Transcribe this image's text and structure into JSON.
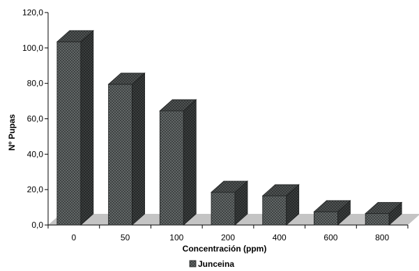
{
  "chart_data": {
    "type": "bar",
    "style": "3d-column",
    "categories": [
      "0",
      "50",
      "100",
      "200",
      "400",
      "600",
      "800"
    ],
    "series": [
      {
        "name": "Junceina",
        "values": [
          103.5,
          79.5,
          64.5,
          18.5,
          16.5,
          7.5,
          6.5
        ]
      }
    ],
    "xlabel": "Concentración (ppm)",
    "ylabel": "Nº Pupas",
    "ylim": [
      0,
      120
    ],
    "yticks": [
      "0,0",
      "20,0",
      "40,0",
      "60,0",
      "80,0",
      "100,0",
      "120,0"
    ],
    "grid": false,
    "legend": "bottom",
    "colors": {
      "bar_face": "#5a5e5e",
      "bar_side": "#363a3a",
      "bar_top": "#4a4e4e",
      "floor": "#c4c4c4"
    }
  }
}
